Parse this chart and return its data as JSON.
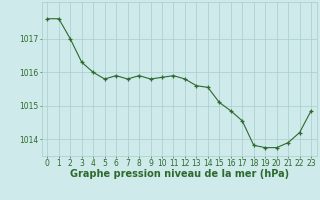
{
  "x": [
    0,
    1,
    2,
    3,
    4,
    5,
    6,
    7,
    8,
    9,
    10,
    11,
    12,
    13,
    14,
    15,
    16,
    17,
    18,
    19,
    20,
    21,
    22,
    23
  ],
  "y": [
    1017.6,
    1017.6,
    1017.0,
    1016.3,
    1016.0,
    1015.8,
    1015.9,
    1015.8,
    1015.9,
    1015.8,
    1015.85,
    1015.9,
    1015.8,
    1015.6,
    1015.55,
    1015.1,
    1014.85,
    1014.55,
    1013.82,
    1013.75,
    1013.75,
    1013.9,
    1014.2,
    1014.85
  ],
  "line_color": "#2d6a2d",
  "marker_color": "#2d6a2d",
  "bg_color": "#ceeaea",
  "grid_color": "#a8cccc",
  "xlabel": "Graphe pression niveau de la mer (hPa)",
  "xlabel_color": "#2d6a2d",
  "tick_color": "#2d6a2d",
  "ylim": [
    1013.5,
    1018.1
  ],
  "yticks": [
    1014,
    1015,
    1016,
    1017
  ],
  "xticks": [
    0,
    1,
    2,
    3,
    4,
    5,
    6,
    7,
    8,
    9,
    10,
    11,
    12,
    13,
    14,
    15,
    16,
    17,
    18,
    19,
    20,
    21,
    22,
    23
  ],
  "tick_label_fontsize": 5.5,
  "xlabel_fontsize": 7.0
}
